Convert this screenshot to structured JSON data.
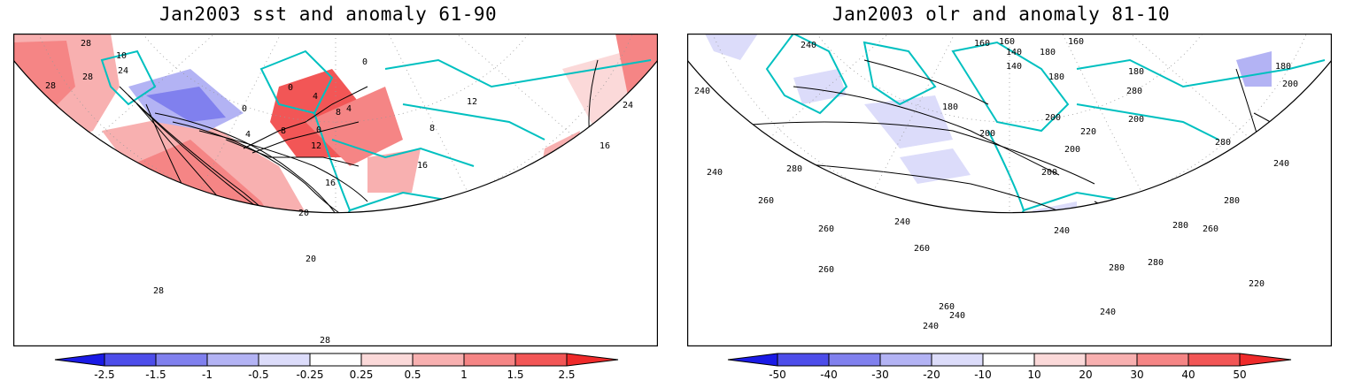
{
  "colors": {
    "red1": "#fbd9d9",
    "red2": "#f8b0b0",
    "red3": "#f58585",
    "red4": "#f25656",
    "red5": "#ef2a2a",
    "blue1": "#dcdcfa",
    "blue2": "#b3b3f4",
    "blue3": "#8080ee",
    "blue4": "#4d4dea",
    "blue5": "#1a1ae6",
    "coast": "#00c0c0",
    "contour": "#000000"
  },
  "panels": [
    {
      "title": "Jan2003 sst and anomaly 61-90",
      "contour_labels": [
        "28",
        "28",
        "24",
        "28",
        "0",
        "4",
        "0",
        "8",
        "4",
        "8",
        "12",
        "16",
        "20",
        "20",
        "28",
        "28",
        "24",
        "12",
        "8",
        "0",
        "10",
        "0",
        "4",
        "16"
      ],
      "colorbar": {
        "labels": [
          "-2.5",
          "-1.5",
          "-1",
          "-0.5",
          "-0.25",
          "0.25",
          "0.5",
          "1",
          "1.5",
          "2.5"
        ]
      }
    },
    {
      "title": "Jan2003 olr and anomaly 81-10",
      "contour_labels": [
        "160",
        "160",
        "140",
        "140",
        "180",
        "180",
        "180",
        "160",
        "180",
        "200",
        "220",
        "200",
        "200",
        "200",
        "200",
        "240",
        "240",
        "240",
        "280",
        "260",
        "280",
        "280",
        "260",
        "240",
        "260",
        "240",
        "280",
        "280",
        "280",
        "260",
        "220",
        "240",
        "240",
        "260",
        "240",
        "260",
        "240",
        "280",
        "180",
        "200"
      ],
      "colorbar": {
        "labels": [
          "-50",
          "-40",
          "-30",
          "-20",
          "-10",
          "10",
          "20",
          "30",
          "40",
          "50"
        ]
      }
    }
  ]
}
